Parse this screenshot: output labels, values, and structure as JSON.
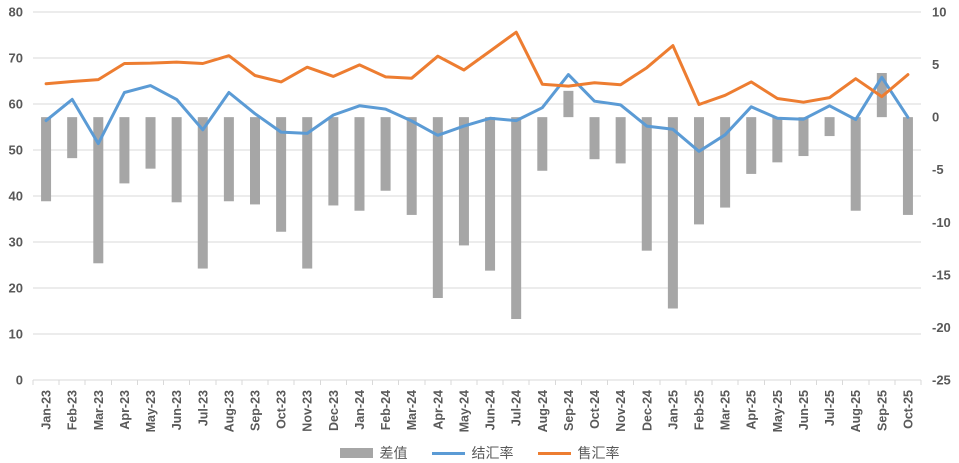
{
  "chart_data": {
    "type": "combo",
    "title": "",
    "categories": [
      "Jan-23",
      "Feb-23",
      "Mar-23",
      "Apr-23",
      "May-23",
      "Jun-23",
      "Jul-23",
      "Aug-23",
      "Sep-23",
      "Oct-23",
      "Nov-23",
      "Dec-23",
      "Jan-24",
      "Feb-24",
      "Mar-24",
      "Apr-24",
      "May-24",
      "Jun-24",
      "Jul-24",
      "Aug-24",
      "Sep-24",
      "Oct-24",
      "Nov-24",
      "Dec-24",
      "Jan-25",
      "Feb-25",
      "Mar-25",
      "Apr-25",
      "May-25",
      "Jun-25",
      "Jul-25",
      "Aug-25",
      "Sep-25",
      "Oct-25"
    ],
    "series": [
      {
        "name": "差值",
        "type": "bar",
        "axis": "right",
        "color": "#A6A6A6",
        "values": [
          -8.0,
          -3.9,
          -13.9,
          -6.3,
          -4.9,
          -8.1,
          -14.4,
          -8.0,
          -8.3,
          -10.9,
          -14.4,
          -8.4,
          -8.9,
          -7.0,
          -9.3,
          -17.2,
          -12.2,
          -14.6,
          -19.2,
          -5.1,
          2.5,
          -4.0,
          -4.4,
          -12.7,
          -18.2,
          -10.2,
          -8.6,
          -5.4,
          -4.3,
          -3.7,
          -1.8,
          -8.9,
          4.2,
          -9.3
        ]
      },
      {
        "name": "结汇率",
        "type": "line",
        "axis": "left",
        "color": "#5B9BD5",
        "values": [
          56.4,
          61.0,
          51.4,
          62.5,
          64.0,
          61.0,
          54.4,
          62.5,
          57.9,
          53.9,
          53.6,
          57.6,
          59.6,
          58.9,
          56.3,
          53.2,
          55.2,
          56.9,
          56.4,
          59.2,
          66.4,
          60.6,
          59.8,
          55.2,
          54.5,
          49.7,
          53.3,
          59.4,
          56.9,
          56.7,
          59.6,
          56.6,
          65.8,
          57.1
        ]
      },
      {
        "name": "售汇率",
        "type": "line",
        "axis": "left",
        "color": "#ED7D31",
        "values": [
          64.4,
          64.9,
          65.3,
          68.8,
          68.9,
          69.1,
          68.8,
          70.5,
          66.2,
          64.8,
          68.0,
          66.0,
          68.5,
          65.9,
          65.6,
          70.4,
          67.4,
          71.5,
          75.6,
          64.3,
          63.9,
          64.6,
          64.2,
          67.9,
          72.7,
          59.9,
          61.9,
          64.8,
          61.2,
          60.4,
          61.4,
          65.5,
          61.6,
          66.4
        ]
      }
    ],
    "left_axis": {
      "min": 0,
      "max": 80,
      "step": 10,
      "ticks": [
        0,
        10,
        20,
        30,
        40,
        50,
        60,
        70,
        80
      ]
    },
    "right_axis": {
      "min": -25,
      "max": 10,
      "step": 5,
      "ticks": [
        10,
        5,
        0,
        -5,
        -10,
        -15,
        -20,
        -25
      ]
    },
    "grid": "horizontal",
    "legend_position": "bottom",
    "colors": {
      "grid": "#D9D9D9",
      "axis_text": "#595959",
      "background": "#FFFFFF"
    }
  }
}
